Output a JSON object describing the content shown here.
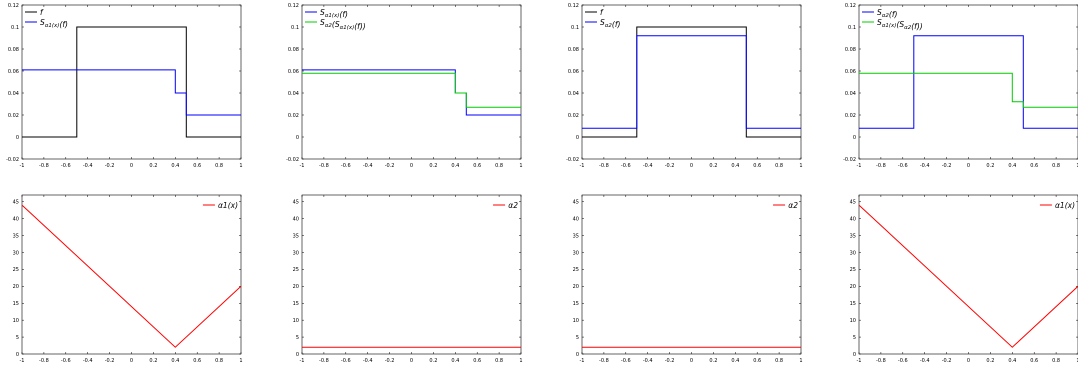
{
  "chart_data": [
    {
      "type": "line",
      "xlim": [
        -1,
        1
      ],
      "ylim": [
        -0.02,
        0.12
      ],
      "xticks": [
        "-1",
        "-0.8",
        "-0.6",
        "-0.4",
        "-0.2",
        "0",
        "0.2",
        "0.4",
        "0.6",
        "0.8",
        "1"
      ],
      "yticks": [
        "-0.02",
        "0",
        "0.02",
        "0.04",
        "0.06",
        "0.08",
        "0.1",
        "0.12"
      ],
      "legend_position": "top-left",
      "series": [
        {
          "name": "f",
          "color": "#000000",
          "x": [
            -1,
            -0.5,
            -0.5,
            0.5,
            0.5,
            1
          ],
          "y": [
            0,
            0,
            0.1,
            0.1,
            0,
            0
          ]
        },
        {
          "name": "S_{α1(x)}(f)",
          "color": "#0000ff",
          "x": [
            -1,
            0.4,
            0.4,
            0.5,
            0.5,
            1
          ],
          "y": [
            0.061,
            0.061,
            0.04,
            0.04,
            0.02,
            0.02
          ]
        }
      ]
    },
    {
      "type": "line",
      "xlim": [
        -1,
        1
      ],
      "ylim": [
        -0.02,
        0.12
      ],
      "xticks": [
        "-1",
        "-0.8",
        "-0.6",
        "-0.4",
        "-0.2",
        "0",
        "0.2",
        "0.4",
        "0.6",
        "0.8",
        "1"
      ],
      "yticks": [
        "-0.02",
        "0",
        "0.02",
        "0.04",
        "0.06",
        "0.08",
        "0.1",
        "0.12"
      ],
      "legend_position": "top-left",
      "series": [
        {
          "name": "S_{α1(x)}(f)",
          "color": "#0000ff",
          "x": [
            -1,
            0.4,
            0.4,
            0.5,
            0.5,
            1
          ],
          "y": [
            0.061,
            0.061,
            0.04,
            0.04,
            0.02,
            0.02
          ]
        },
        {
          "name": "S_{α2}(S_{α1(x)}(f))",
          "color": "#00cc00",
          "x": [
            -1,
            0.4,
            0.4,
            0.5,
            0.5,
            1
          ],
          "y": [
            0.058,
            0.058,
            0.04,
            0.04,
            0.027,
            0.027
          ]
        }
      ]
    },
    {
      "type": "line",
      "xlim": [
        -1,
        1
      ],
      "ylim": [
        -0.02,
        0.12
      ],
      "xticks": [
        "-1",
        "-0.8",
        "-0.6",
        "-0.4",
        "-0.2",
        "0",
        "0.2",
        "0.4",
        "0.6",
        "0.8",
        "1"
      ],
      "yticks": [
        "-0.02",
        "0",
        "0.02",
        "0.04",
        "0.06",
        "0.08",
        "0.1",
        "0.12"
      ],
      "legend_position": "top-left",
      "series": [
        {
          "name": "f",
          "color": "#000000",
          "x": [
            -1,
            -0.5,
            -0.5,
            0.5,
            0.5,
            1
          ],
          "y": [
            0,
            0,
            0.1,
            0.1,
            0,
            0
          ]
        },
        {
          "name": "S_{α2}(f)",
          "color": "#0000ff",
          "x": [
            -1,
            -0.5,
            -0.5,
            0.5,
            0.5,
            1
          ],
          "y": [
            0.008,
            0.008,
            0.092,
            0.092,
            0.008,
            0.008
          ]
        }
      ]
    },
    {
      "type": "line",
      "xlim": [
        -1,
        1
      ],
      "ylim": [
        -0.02,
        0.12
      ],
      "xticks": [
        "-1",
        "-0.8",
        "-0.6",
        "-0.4",
        "-0.2",
        "0",
        "0.2",
        "0.4",
        "0.6",
        "0.8",
        "1"
      ],
      "yticks": [
        "-0.02",
        "0",
        "0.02",
        "0.04",
        "0.06",
        "0.08",
        "0.1",
        "0.12"
      ],
      "legend_position": "top-left",
      "series": [
        {
          "name": "S_{α2}(f)",
          "color": "#0000ff",
          "x": [
            -1,
            -0.5,
            -0.5,
            0.5,
            0.5,
            1
          ],
          "y": [
            0.008,
            0.008,
            0.092,
            0.092,
            0.008,
            0.008
          ]
        },
        {
          "name": "S_{α1(x)}(S_{α2}(f))",
          "color": "#00cc00",
          "x": [
            -1,
            0.4,
            0.4,
            0.5,
            0.5,
            1
          ],
          "y": [
            0.058,
            0.058,
            0.032,
            0.032,
            0.027,
            0.027
          ]
        }
      ]
    },
    {
      "type": "line",
      "xlim": [
        -1,
        1
      ],
      "ylim": [
        0,
        47
      ],
      "xticks": [
        "-1",
        "-0.8",
        "-0.6",
        "-0.4",
        "-0.2",
        "0",
        "0.2",
        "0.4",
        "0.6",
        "0.8",
        "1"
      ],
      "yticks": [
        "0",
        "5",
        "10",
        "15",
        "20",
        "25",
        "30",
        "35",
        "40",
        "45"
      ],
      "legend_position": "top-right",
      "series": [
        {
          "name": "α1(x)",
          "color": "#ff0000",
          "x": [
            -1,
            0.4,
            1
          ],
          "y": [
            44,
            2,
            20
          ]
        }
      ]
    },
    {
      "type": "line",
      "xlim": [
        -1,
        1
      ],
      "ylim": [
        0,
        47
      ],
      "xticks": [
        "-1",
        "-0.8",
        "-0.6",
        "-0.4",
        "-0.2",
        "0",
        "0.2",
        "0.4",
        "0.6",
        "0.8",
        "1"
      ],
      "yticks": [
        "0",
        "5",
        "10",
        "15",
        "20",
        "25",
        "30",
        "35",
        "40",
        "45"
      ],
      "legend_position": "top-right",
      "series": [
        {
          "name": "α2",
          "color": "#ff0000",
          "x": [
            -1,
            1
          ],
          "y": [
            2,
            2
          ]
        }
      ]
    },
    {
      "type": "line",
      "xlim": [
        -1,
        1
      ],
      "ylim": [
        0,
        47
      ],
      "xticks": [
        "-1",
        "-0.8",
        "-0.6",
        "-0.4",
        "-0.2",
        "0",
        "0.2",
        "0.4",
        "0.6",
        "0.8",
        "1"
      ],
      "yticks": [
        "0",
        "5",
        "10",
        "15",
        "20",
        "25",
        "30",
        "35",
        "40",
        "45"
      ],
      "legend_position": "top-right",
      "series": [
        {
          "name": "α2",
          "color": "#ff0000",
          "x": [
            -1,
            1
          ],
          "y": [
            2,
            2
          ]
        }
      ]
    },
    {
      "type": "line",
      "xlim": [
        -1,
        1
      ],
      "ylim": [
        0,
        47
      ],
      "xticks": [
        "-1",
        "-0.8",
        "-0.6",
        "-0.4",
        "-0.2",
        "0",
        "0.2",
        "0.4",
        "0.6",
        "0.8",
        "1"
      ],
      "yticks": [
        "0",
        "5",
        "10",
        "15",
        "20",
        "25",
        "30",
        "35",
        "40",
        "45"
      ],
      "legend_position": "top-right",
      "series": [
        {
          "name": "α1(x)",
          "color": "#ff0000",
          "x": [
            -1,
            0.4,
            1
          ],
          "y": [
            44,
            2,
            20
          ]
        }
      ]
    }
  ]
}
